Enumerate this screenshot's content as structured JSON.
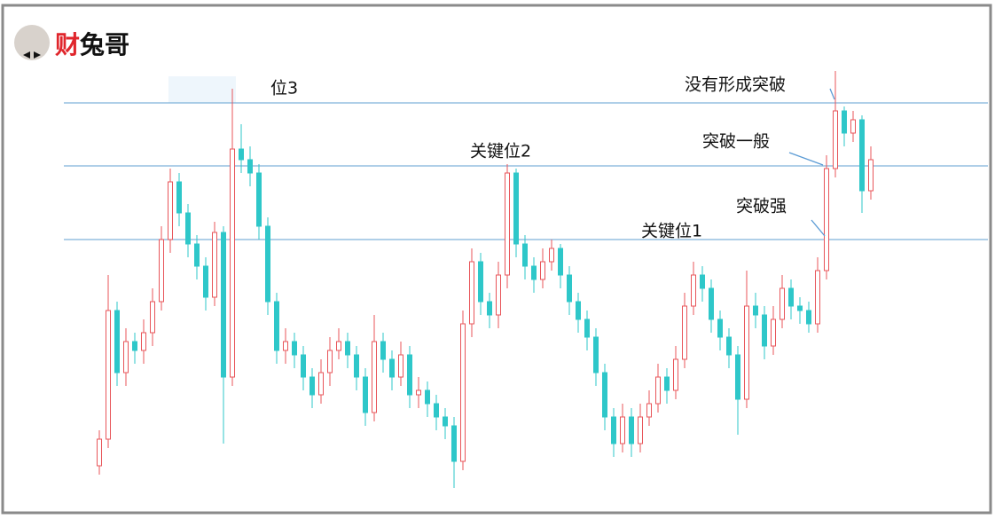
{
  "logo": "财兔哥",
  "chart_data": {
    "type": "candlestick",
    "up_color": "#e8555a",
    "down_color": "#2ec7c9",
    "level_color": "#7fb2d9",
    "ylim": [
      0,
      585
    ],
    "levels": [
      469,
      398,
      315
    ],
    "annotations": [
      {
        "text": "位3"
      },
      {
        "text": "关键位2"
      },
      {
        "text": "关键位1"
      },
      {
        "text": "没有形成突破"
      },
      {
        "text": "突破一般"
      },
      {
        "text": "突破强"
      }
    ],
    "open": [
      60,
      90,
      235,
      165,
      200,
      190,
      210,
      245,
      315,
      380,
      345,
      310,
      285,
      250,
      323,
      160,
      417,
      405,
      390,
      330,
      245,
      190,
      200,
      185,
      160,
      140,
      165,
      190,
      200,
      185,
      160,
      120,
      200,
      180,
      160,
      185,
      140,
      145,
      130,
      115,
      105,
      65,
      220,
      290,
      245,
      230,
      275,
      390,
      310,
      285,
      270,
      290,
      305,
      275,
      245,
      225,
      205,
      165,
      115,
      85,
      115,
      85,
      115,
      130,
      160,
      145,
      180,
      240,
      275,
      260,
      225,
      205,
      185,
      135,
      240,
      230,
      195,
      225,
      260,
      240,
      235,
      220,
      280,
      395,
      460,
      435,
      450,
      370
    ],
    "close": [
      90,
      235,
      165,
      200,
      190,
      210,
      245,
      315,
      380,
      345,
      310,
      285,
      250,
      323,
      160,
      417,
      405,
      390,
      330,
      245,
      190,
      200,
      185,
      160,
      140,
      165,
      190,
      200,
      185,
      160,
      120,
      200,
      180,
      160,
      185,
      140,
      145,
      130,
      115,
      105,
      65,
      220,
      290,
      245,
      230,
      275,
      390,
      310,
      285,
      270,
      290,
      305,
      275,
      245,
      225,
      205,
      165,
      115,
      85,
      115,
      85,
      115,
      130,
      160,
      145,
      180,
      240,
      275,
      260,
      225,
      205,
      185,
      135,
      240,
      230,
      195,
      225,
      260,
      240,
      235,
      220,
      280,
      395,
      460,
      435,
      450,
      370,
      405
    ],
    "high": [
      100,
      275,
      245,
      215,
      210,
      225,
      260,
      330,
      395,
      390,
      355,
      320,
      295,
      335,
      330,
      485,
      445,
      420,
      400,
      340,
      255,
      215,
      210,
      195,
      170,
      180,
      205,
      215,
      210,
      195,
      170,
      230,
      210,
      190,
      200,
      195,
      160,
      155,
      140,
      125,
      115,
      235,
      305,
      300,
      255,
      290,
      400,
      395,
      320,
      295,
      305,
      315,
      310,
      285,
      255,
      235,
      215,
      175,
      125,
      130,
      125,
      130,
      145,
      175,
      170,
      195,
      255,
      290,
      285,
      270,
      235,
      215,
      195,
      280,
      255,
      240,
      240,
      275,
      270,
      250,
      245,
      295,
      410,
      505,
      465,
      460,
      455,
      420
    ],
    "low": [
      50,
      80,
      150,
      150,
      175,
      175,
      195,
      235,
      300,
      330,
      295,
      270,
      235,
      240,
      85,
      150,
      390,
      375,
      315,
      230,
      175,
      175,
      170,
      145,
      125,
      130,
      150,
      180,
      170,
      145,
      105,
      110,
      165,
      145,
      150,
      125,
      125,
      115,
      100,
      90,
      35,
      55,
      205,
      230,
      215,
      215,
      260,
      295,
      270,
      255,
      260,
      280,
      260,
      230,
      210,
      190,
      150,
      100,
      70,
      75,
      70,
      75,
      105,
      120,
      130,
      135,
      170,
      230,
      245,
      210,
      190,
      170,
      95,
      125,
      215,
      180,
      185,
      215,
      225,
      220,
      210,
      210,
      270,
      385,
      420,
      425,
      345,
      360
    ]
  }
}
